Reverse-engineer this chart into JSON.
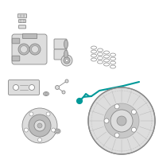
{
  "bg_color": "#ffffff",
  "highlight_color": "#009999",
  "part_color": "#aaaaaa",
  "part_color_light": "#dddddd",
  "part_color_dark": "#888888",
  "part_color_mid": "#bbbbbb",
  "figsize": [
    2.0,
    2.0
  ],
  "dpi": 100
}
